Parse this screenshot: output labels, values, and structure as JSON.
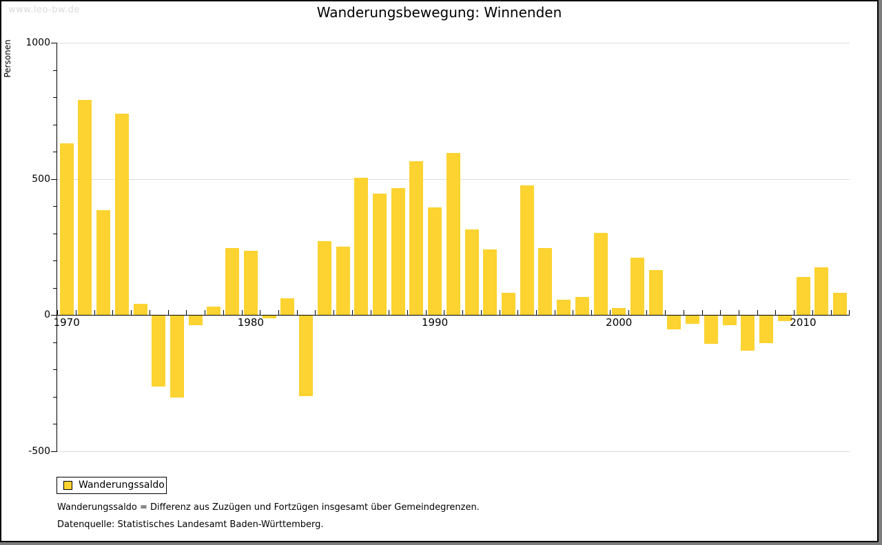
{
  "watermark": "www.leo-bw.de",
  "title": "Wanderungsbewegung: Winnenden",
  "y_axis_title": "Personen",
  "legend": {
    "label": "Wanderungssaldo"
  },
  "footnotes": {
    "definition": "Wanderungssaldo = Differenz aus Zuzügen und Fortzügen insgesamt über Gemeindegrenzen.",
    "source": "Datenquelle: Statistisches Landesamt Baden-Württemberg."
  },
  "colors": {
    "bar": "#FCD330",
    "grid": "#DCDCDC",
    "axis": "#000000",
    "watermark": "#D9D9D9"
  },
  "chart_data": {
    "type": "bar",
    "title": "Wanderungsbewegung: Winnenden",
    "xlabel": "",
    "ylabel": "Personen",
    "series_name": "Wanderungssaldo",
    "x": [
      1970,
      1971,
      1972,
      1973,
      1974,
      1975,
      1976,
      1977,
      1978,
      1979,
      1980,
      1981,
      1982,
      1983,
      1984,
      1985,
      1986,
      1987,
      1988,
      1989,
      1990,
      1991,
      1992,
      1993,
      1994,
      1995,
      1996,
      1997,
      1998,
      1999,
      2000,
      2001,
      2002,
      2003,
      2004,
      2005,
      2006,
      2007,
      2008,
      2009,
      2010,
      2011,
      2012
    ],
    "values": [
      630,
      790,
      385,
      740,
      40,
      -260,
      -300,
      -35,
      30,
      245,
      235,
      -10,
      60,
      -295,
      270,
      250,
      505,
      445,
      465,
      565,
      395,
      595,
      315,
      240,
      80,
      475,
      245,
      55,
      65,
      300,
      25,
      210,
      165,
      -50,
      -30,
      -105,
      -35,
      -130,
      -100,
      -20,
      140,
      175,
      80
    ],
    "ylim": [
      -500,
      1000
    ],
    "y_major_ticks": [
      1000,
      500,
      0,
      -500
    ],
    "y_minor_step": 100,
    "x_decade_labels": [
      1970,
      1980,
      1990,
      2000,
      2010
    ],
    "grid": "horizontal gridlines at -500, 500, 1000; zero line is black axis",
    "legend_position": "bottom-left",
    "bar_color": "#FCD330"
  }
}
